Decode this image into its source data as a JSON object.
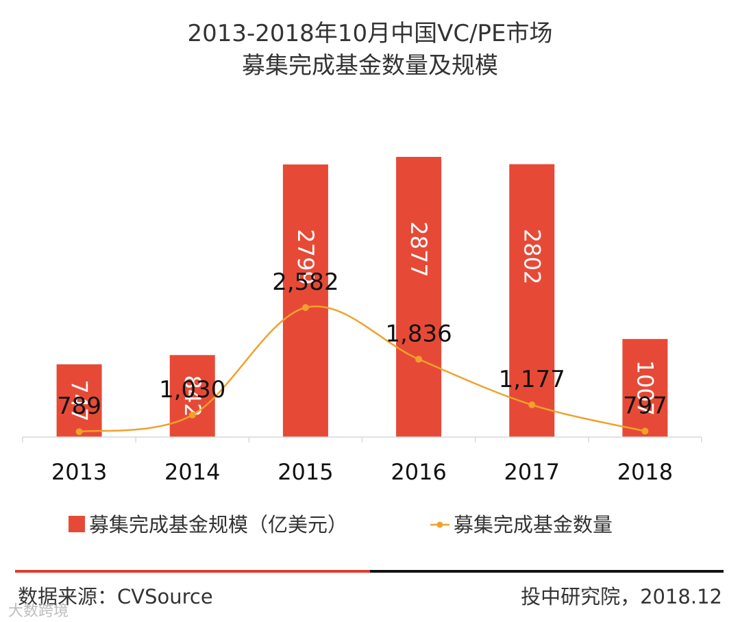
{
  "chart_data": {
    "type": "bar+line",
    "title_line1": "2013-2018年10月中国VC/PE市场",
    "title_line2": "募集完成基金数量及规模",
    "categories": [
      "2013",
      "2014",
      "2015",
      "2016",
      "2017",
      "2018"
    ],
    "series": [
      {
        "name": "募集完成基金规模（亿美元）",
        "type": "bar",
        "values": [
          747,
          842,
          2799,
          2877,
          2802,
          1007
        ],
        "labels": [
          "747",
          "842",
          "2799",
          "2877",
          "2802",
          "1007"
        ]
      },
      {
        "name": "募集完成基金数量",
        "type": "line",
        "values": [
          789,
          1030,
          2582,
          1836,
          1177,
          797
        ],
        "labels": [
          "789",
          "1,030",
          "2,582",
          "1,836",
          "1,177",
          "797"
        ]
      }
    ],
    "bar_axis_max": 3200,
    "line_axis_max": 3200,
    "colors": {
      "bar": "#e64a37",
      "line": "#f0a12b",
      "label_dark": "#111111",
      "label_light": "#ffffff"
    }
  },
  "footer": {
    "source": "数据来源：CVSource",
    "credit": "投中研究院，2018.12",
    "watermark": "大数跨境"
  }
}
